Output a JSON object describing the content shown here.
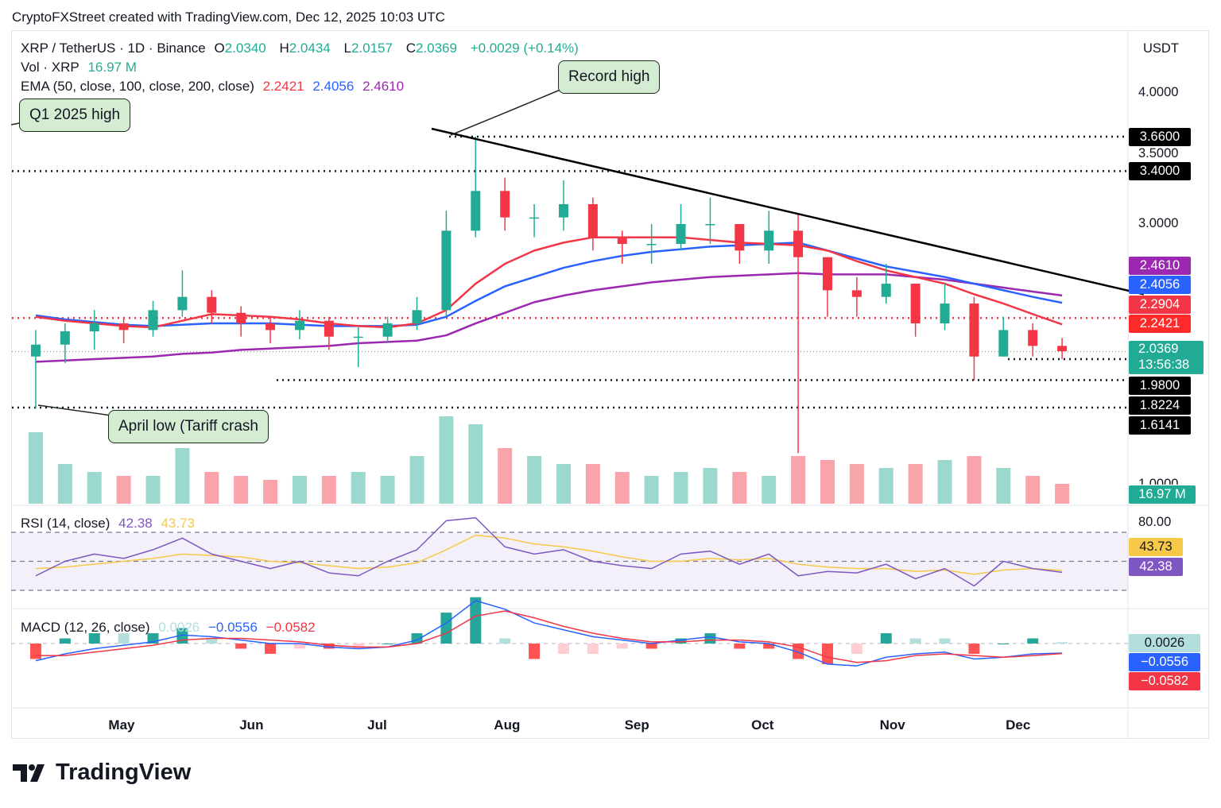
{
  "credit": "CryptoFXStreet created with TradingView.com, Dec 12, 2025 10:03 UTC",
  "legend": {
    "symbol": "XRP / TetherUS · 1D · Binance",
    "o_label": "O",
    "o": "2.0340",
    "h_label": "H",
    "h": "2.0434",
    "l_label": "L",
    "l": "2.0157",
    "c_label": "C",
    "c": "2.0369",
    "change": "+0.0029 (+0.14%)",
    "vol_label": "Vol · XRP",
    "vol": "16.97 M",
    "ema_label": "EMA (50, close, 100, close, 200, close)",
    "ema50": "2.2421",
    "ema100": "2.4056",
    "ema200": "2.4610",
    "rsi_label": "RSI (14, close)",
    "rsi": "42.38",
    "rsi_ma": "43.73",
    "macd_label": "MACD (12, 26, close)",
    "macd_hist": "0.0026",
    "macd": "−0.0556",
    "macd_signal": "−0.0582"
  },
  "currency": "USDT",
  "annotations": {
    "record_high": "Record high",
    "q1_high": "Q1 2025 high",
    "april_low": "April low (Tariff crash"
  },
  "colors": {
    "up": "#22ab94",
    "down": "#f23645",
    "ema50": "#f23645",
    "ema100": "#2962ff",
    "ema200": "#9c27b0",
    "rsi": "#7e57c2",
    "rsi_ma": "#f7c948",
    "macd": "#2962ff",
    "signal": "#f23645",
    "annotation_bg": "#d4ecd2"
  },
  "footer": {
    "brand": "TradingView"
  },
  "chart_data": {
    "type": "candlestick",
    "price_ticks": [
      "4.0000",
      "3.5000",
      "3.0000"
    ],
    "volume_tick": "1.0000",
    "rsi_tick": "80.00",
    "months": [
      "May",
      "Jun",
      "Jul",
      "Aug",
      "Sep",
      "Oct",
      "Nov",
      "Dec"
    ],
    "month_dates": [
      "2025-05-01",
      "2025-06-01",
      "2025-07-01",
      "2025-08-01",
      "2025-09-01",
      "2025-10-01",
      "2025-11-01",
      "2025-12-01"
    ],
    "levels": [
      {
        "value": 3.66,
        "label": "3.6600",
        "style": "dotted"
      },
      {
        "value": 3.4,
        "label": "3.4000",
        "style": "dotted"
      },
      {
        "value": 2.2904,
        "label": "2.2904",
        "style": "dotted-red"
      },
      {
        "value": 1.98,
        "label": "1.9800",
        "style": "dotted"
      },
      {
        "value": 1.8224,
        "label": "1.8224",
        "style": "dotted"
      },
      {
        "value": 1.6141,
        "label": "1.6141",
        "style": "dotted"
      }
    ],
    "badges": [
      {
        "value": 2.461,
        "label": "2.4610",
        "color": "#9c27b0"
      },
      {
        "value": 2.4056,
        "label": "2.4056",
        "color": "#2962ff"
      },
      {
        "value": 2.2904,
        "label": "2.2904",
        "color": "#f23645"
      },
      {
        "value": 2.2421,
        "label": "2.2421",
        "color": "#ff2a2a"
      }
    ],
    "last_price": {
      "value": 2.0369,
      "label": "2.0369",
      "countdown": "13:56:38"
    },
    "volume_badge": "16.97 M",
    "rsi_badges": [
      {
        "label": "43.73",
        "color": "#f7c948"
      },
      {
        "label": "42.38",
        "color": "#7e57c2"
      }
    ],
    "macd_badges": [
      {
        "label": "0.0026",
        "color": "#b2dfdb"
      },
      {
        "label": "−0.0556",
        "color": "#2962ff"
      },
      {
        "label": "−0.0582",
        "color": "#f23645"
      }
    ],
    "trendline": [
      {
        "date": "2025-07-14",
        "price": 3.72
      },
      {
        "date": "2025-12-31",
        "price": 2.47
      }
    ],
    "x": [
      "2025-04-07",
      "2025-04-14",
      "2025-04-21",
      "2025-04-28",
      "2025-05-05",
      "2025-05-12",
      "2025-05-19",
      "2025-05-26",
      "2025-06-02",
      "2025-06-09",
      "2025-06-16",
      "2025-06-23",
      "2025-06-30",
      "2025-07-07",
      "2025-07-14",
      "2025-07-21",
      "2025-07-28",
      "2025-08-04",
      "2025-08-11",
      "2025-08-18",
      "2025-08-25",
      "2025-09-01",
      "2025-09-08",
      "2025-09-15",
      "2025-09-22",
      "2025-09-29",
      "2025-10-06",
      "2025-10-13",
      "2025-10-20",
      "2025-10-27",
      "2025-11-03",
      "2025-11-10",
      "2025-11-17",
      "2025-11-24",
      "2025-12-01",
      "2025-12-08"
    ],
    "open": [
      2.0,
      2.09,
      2.19,
      2.25,
      2.2,
      2.35,
      2.45,
      2.33,
      2.25,
      2.2,
      2.27,
      2.15,
      2.15,
      2.25,
      2.35,
      2.95,
      3.25,
      3.05,
      3.05,
      3.15,
      2.9,
      2.85,
      2.85,
      3.0,
      3.0,
      2.8,
      2.95,
      2.75,
      2.5,
      2.45,
      2.55,
      2.25,
      2.4,
      2.0,
      2.2,
      2.08
    ],
    "high": [
      2.2,
      2.25,
      2.35,
      2.3,
      2.42,
      2.65,
      2.5,
      2.38,
      2.3,
      2.35,
      2.3,
      2.22,
      2.3,
      2.45,
      3.1,
      3.66,
      3.35,
      3.15,
      3.33,
      3.2,
      2.95,
      3.0,
      3.15,
      3.2,
      3.0,
      3.1,
      3.08,
      2.75,
      2.6,
      2.7,
      2.55,
      2.55,
      2.45,
      2.3,
      2.25,
      2.14
    ],
    "low": [
      1.61,
      1.95,
      2.05,
      2.1,
      2.15,
      2.3,
      2.25,
      2.15,
      2.1,
      2.13,
      2.05,
      1.92,
      2.1,
      2.2,
      2.3,
      2.9,
      2.95,
      2.9,
      2.95,
      2.8,
      2.7,
      2.7,
      2.8,
      2.85,
      2.7,
      2.7,
      1.27,
      2.3,
      2.3,
      2.4,
      2.15,
      2.2,
      1.82,
      2.0,
      2.0,
      1.98
    ],
    "close": [
      2.09,
      2.19,
      2.25,
      2.2,
      2.35,
      2.45,
      2.33,
      2.25,
      2.2,
      2.27,
      2.15,
      2.15,
      2.25,
      2.35,
      2.95,
      3.25,
      3.05,
      3.05,
      3.15,
      2.9,
      2.85,
      2.85,
      3.0,
      3.0,
      2.8,
      2.95,
      2.75,
      2.5,
      2.45,
      2.55,
      2.25,
      2.4,
      2.0,
      2.2,
      2.08,
      2.04
    ],
    "volume_m": [
      900,
      500,
      400,
      350,
      350,
      700,
      400,
      350,
      300,
      350,
      350,
      400,
      350,
      600,
      1100,
      1000,
      700,
      600,
      500,
      500,
      400,
      350,
      400,
      450,
      400,
      350,
      600,
      550,
      500,
      450,
      500,
      550,
      600,
      450,
      350,
      250
    ],
    "ema50": [
      2.3,
      2.27,
      2.25,
      2.23,
      2.22,
      2.27,
      2.32,
      2.31,
      2.3,
      2.28,
      2.25,
      2.23,
      2.22,
      2.25,
      2.35,
      2.55,
      2.7,
      2.8,
      2.86,
      2.9,
      2.9,
      2.9,
      2.9,
      2.88,
      2.86,
      2.85,
      2.84,
      2.8,
      2.72,
      2.65,
      2.6,
      2.55,
      2.47,
      2.4,
      2.32,
      2.2421
    ],
    "ema100": [
      2.31,
      2.28,
      2.26,
      2.24,
      2.23,
      2.24,
      2.25,
      2.25,
      2.25,
      2.24,
      2.23,
      2.23,
      2.23,
      2.24,
      2.3,
      2.42,
      2.53,
      2.6,
      2.67,
      2.72,
      2.76,
      2.79,
      2.81,
      2.83,
      2.84,
      2.85,
      2.86,
      2.8,
      2.74,
      2.68,
      2.64,
      2.6,
      2.55,
      2.5,
      2.45,
      2.4056
    ],
    "ema200": [
      1.96,
      1.97,
      1.98,
      1.99,
      2.0,
      2.02,
      2.03,
      2.05,
      2.06,
      2.07,
      2.08,
      2.1,
      2.11,
      2.12,
      2.16,
      2.25,
      2.33,
      2.41,
      2.46,
      2.5,
      2.53,
      2.56,
      2.58,
      2.6,
      2.61,
      2.62,
      2.63,
      2.62,
      2.62,
      2.62,
      2.6,
      2.58,
      2.55,
      2.52,
      2.49,
      2.461
    ],
    "rsi": [
      40,
      50,
      55,
      52,
      58,
      66,
      55,
      50,
      45,
      50,
      42,
      40,
      50,
      58,
      78,
      80,
      60,
      55,
      58,
      50,
      47,
      45,
      55,
      57,
      48,
      55,
      40,
      43,
      42,
      48,
      38,
      45,
      33,
      50,
      45,
      42.38
    ],
    "rsi_ma": [
      45,
      46,
      48,
      50,
      52,
      55,
      54,
      53,
      50,
      49,
      47,
      45,
      46,
      49,
      58,
      68,
      66,
      62,
      60,
      57,
      53,
      50,
      50,
      52,
      51,
      52,
      48,
      46,
      45,
      45,
      43,
      44,
      41,
      44,
      45,
      43.73
    ],
    "rsi_levels": [
      70,
      50,
      30
    ],
    "macd": [
      -0.1,
      -0.06,
      -0.03,
      -0.01,
      0.01,
      0.05,
      0.04,
      0.02,
      0.0,
      0.0,
      -0.02,
      -0.03,
      -0.02,
      0.02,
      0.12,
      0.25,
      0.2,
      0.12,
      0.08,
      0.04,
      0.02,
      0.0,
      0.02,
      0.04,
      0.01,
      0.0,
      -0.05,
      -0.12,
      -0.13,
      -0.08,
      -0.06,
      -0.05,
      -0.09,
      -0.08,
      -0.06,
      -0.0556
    ],
    "signal": [
      -0.07,
      -0.07,
      -0.05,
      -0.03,
      -0.01,
      0.02,
      0.03,
      0.03,
      0.02,
      0.01,
      -0.01,
      -0.02,
      -0.02,
      0.0,
      0.06,
      0.16,
      0.19,
      0.15,
      0.1,
      0.06,
      0.03,
      0.01,
      0.01,
      0.02,
      0.02,
      0.01,
      -0.02,
      -0.08,
      -0.11,
      -0.1,
      -0.07,
      -0.06,
      -0.07,
      -0.08,
      -0.07,
      -0.0582
    ]
  }
}
